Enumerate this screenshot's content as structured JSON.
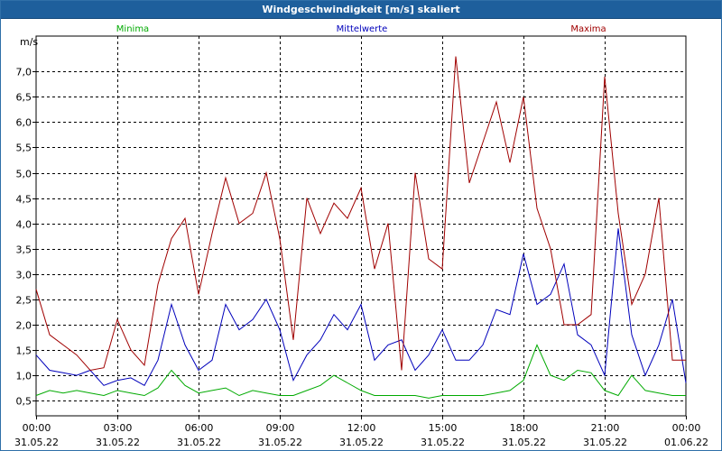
{
  "window": {
    "title": "Windgeschwindigkeit [m/s] skaliert"
  },
  "colors": {
    "titlebar": "#1e5f9c",
    "minima": "#00aa00",
    "mittelwerte": "#0000bb",
    "maxima": "#a00000",
    "grid": "#000000"
  },
  "chart_data": {
    "type": "line",
    "title": "Windgeschwindigkeit [m/s] skaliert",
    "ylabel": "m/s",
    "xlabel": "",
    "ylim": [
      0.2,
      7.7
    ],
    "xlim": [
      0,
      24
    ],
    "grid": true,
    "y_ticks": [
      "0,5",
      "1,0",
      "1,5",
      "2,0",
      "2,5",
      "3,0",
      "3,5",
      "4,0",
      "4,5",
      "5,0",
      "5,5",
      "6,0",
      "6,5",
      "7,0"
    ],
    "y_tick_values": [
      0.5,
      1.0,
      1.5,
      2.0,
      2.5,
      3.0,
      3.5,
      4.0,
      4.5,
      5.0,
      5.5,
      6.0,
      6.5,
      7.0
    ],
    "x_ticks": [
      {
        "time": "00:00",
        "date": "31.05.22",
        "hour": 0
      },
      {
        "time": "03:00",
        "date": "31.05.22",
        "hour": 3
      },
      {
        "time": "06:00",
        "date": "31.05.22",
        "hour": 6
      },
      {
        "time": "09:00",
        "date": "31.05.22",
        "hour": 9
      },
      {
        "time": "12:00",
        "date": "31.05.22",
        "hour": 12
      },
      {
        "time": "15:00",
        "date": "31.05.22",
        "hour": 15
      },
      {
        "time": "18:00",
        "date": "31.05.22",
        "hour": 18
      },
      {
        "time": "21:00",
        "date": "31.05.22",
        "hour": 21
      },
      {
        "time": "00:00",
        "date": "01.06.22",
        "hour": 24
      }
    ],
    "series": [
      {
        "name": "Minima",
        "color": "#00aa00",
        "legend_position": "left",
        "x": [
          0,
          0.5,
          1,
          1.5,
          2,
          2.5,
          3,
          3.5,
          4,
          4.5,
          5,
          5.5,
          6,
          6.5,
          7,
          7.5,
          8,
          8.5,
          9,
          9.5,
          10,
          10.5,
          11,
          11.5,
          12,
          12.5,
          13,
          13.5,
          14,
          14.5,
          15,
          15.5,
          16,
          16.5,
          17,
          17.5,
          18,
          18.5,
          19,
          19.5,
          20,
          20.5,
          21,
          21.5,
          22,
          22.5,
          23,
          23.5,
          24
        ],
        "values": [
          0.6,
          0.7,
          0.65,
          0.7,
          0.65,
          0.6,
          0.7,
          0.65,
          0.6,
          0.75,
          1.1,
          0.8,
          0.65,
          0.7,
          0.75,
          0.6,
          0.7,
          0.65,
          0.6,
          0.6,
          0.7,
          0.8,
          1.0,
          0.85,
          0.7,
          0.6,
          0.6,
          0.6,
          0.6,
          0.55,
          0.6,
          0.6,
          0.6,
          0.6,
          0.65,
          0.7,
          0.9,
          1.6,
          1.0,
          0.9,
          1.1,
          1.05,
          0.7,
          0.6,
          1.0,
          0.7,
          0.65,
          0.6,
          0.6
        ]
      },
      {
        "name": "Mittelwerte",
        "color": "#0000bb",
        "legend_position": "center",
        "x": [
          0,
          0.5,
          1,
          1.5,
          2,
          2.5,
          3,
          3.5,
          4,
          4.5,
          5,
          5.5,
          6,
          6.5,
          7,
          7.5,
          8,
          8.5,
          9,
          9.5,
          10,
          10.5,
          11,
          11.5,
          12,
          12.5,
          13,
          13.5,
          14,
          14.5,
          15,
          15.5,
          16,
          16.5,
          17,
          17.5,
          18,
          18.5,
          19,
          19.5,
          20,
          20.5,
          21,
          21.5,
          22,
          22.5,
          23,
          23.5,
          24
        ],
        "values": [
          1.4,
          1.1,
          1.05,
          1.0,
          1.1,
          0.8,
          0.9,
          0.95,
          0.8,
          1.3,
          2.4,
          1.6,
          1.1,
          1.3,
          2.4,
          1.9,
          2.1,
          2.5,
          1.9,
          0.9,
          1.4,
          1.7,
          2.2,
          1.9,
          2.4,
          1.3,
          1.6,
          1.7,
          1.1,
          1.4,
          1.9,
          1.3,
          1.3,
          1.6,
          2.3,
          2.2,
          3.4,
          2.4,
          2.6,
          3.2,
          1.8,
          1.6,
          1.0,
          3.9,
          1.8,
          1.0,
          1.6,
          2.5,
          0.85
        ]
      },
      {
        "name": "Maxima",
        "color": "#a00000",
        "legend_position": "right",
        "x": [
          0,
          0.5,
          1,
          1.5,
          2,
          2.5,
          3,
          3.5,
          4,
          4.5,
          5,
          5.5,
          6,
          6.5,
          7,
          7.5,
          8,
          8.5,
          9,
          9.5,
          10,
          10.5,
          11,
          11.5,
          12,
          12.5,
          13,
          13.5,
          14,
          14.5,
          15,
          15.5,
          16,
          16.5,
          17,
          17.5,
          18,
          18.5,
          19,
          19.5,
          20,
          20.5,
          21,
          21.5,
          22,
          22.5,
          23,
          23.5,
          24
        ],
        "values": [
          2.7,
          1.8,
          1.6,
          1.4,
          1.1,
          1.15,
          2.1,
          1.5,
          1.2,
          2.8,
          3.7,
          4.1,
          2.6,
          3.8,
          4.9,
          4.0,
          4.2,
          5.0,
          3.7,
          1.7,
          4.5,
          3.8,
          4.4,
          4.1,
          4.7,
          3.1,
          4.0,
          1.1,
          5.0,
          3.3,
          3.1,
          7.3,
          4.8,
          5.6,
          6.4,
          5.2,
          6.5,
          4.3,
          3.5,
          2.0,
          2.0,
          2.2,
          6.9,
          4.2,
          2.4,
          3.0,
          4.5,
          1.3,
          1.3
        ]
      }
    ]
  }
}
